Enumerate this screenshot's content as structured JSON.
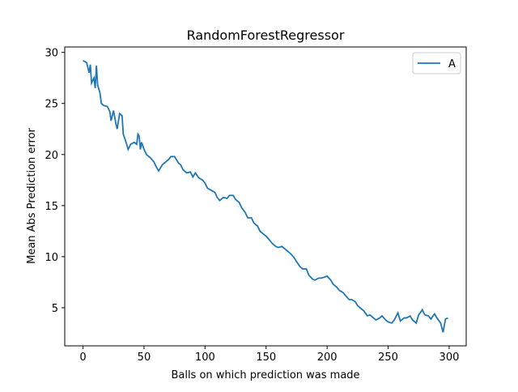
{
  "chart_data": {
    "type": "line",
    "title": "RandomForestRegressor",
    "x_label": "Balls on which prediction was made",
    "y_label": "Mean Abs Prediction error",
    "x": [
      0,
      3,
      5,
      6,
      7,
      9,
      10,
      11,
      12,
      14,
      15,
      17,
      20,
      22,
      23,
      25,
      27,
      28,
      30,
      32,
      33,
      35,
      37,
      39,
      42,
      44,
      45,
      46,
      47,
      48,
      50,
      52,
      55,
      58,
      60,
      62,
      65,
      68,
      70,
      72,
      75,
      78,
      80,
      82,
      85,
      88,
      90,
      92,
      95,
      98,
      100,
      102,
      105,
      108,
      110,
      112,
      115,
      118,
      120,
      123,
      125,
      128,
      130,
      133,
      135,
      138,
      140,
      143,
      145,
      148,
      150,
      153,
      155,
      158,
      160,
      163,
      165,
      168,
      170,
      173,
      175,
      178,
      180,
      183,
      185,
      188,
      190,
      193,
      195,
      198,
      200,
      203,
      205,
      208,
      210,
      213,
      215,
      218,
      220,
      223,
      225,
      228,
      230,
      233,
      235,
      238,
      240,
      243,
      245,
      248,
      250,
      253,
      255,
      258,
      260,
      263,
      265,
      268,
      270,
      273,
      275,
      278,
      280,
      283,
      285,
      288,
      290,
      293,
      295,
      297,
      299
    ],
    "series": [
      {
        "name": "A",
        "color": "#1f77b4",
        "values": [
          29.2,
          29.0,
          28.0,
          28.8,
          27.0,
          27.5,
          26.5,
          28.7,
          26.8,
          26.0,
          25.0,
          24.8,
          24.7,
          24.2,
          23.3,
          24.3,
          23.0,
          22.5,
          24.0,
          23.8,
          22.0,
          21.3,
          20.5,
          21.0,
          21.2,
          21.0,
          22.0,
          21.8,
          20.5,
          21.2,
          20.5,
          20.0,
          19.7,
          19.3,
          18.8,
          18.4,
          19.0,
          19.3,
          19.5,
          19.8,
          19.8,
          19.2,
          19.0,
          18.5,
          18.2,
          18.3,
          17.8,
          18.2,
          17.7,
          17.5,
          17.2,
          16.7,
          16.5,
          16.3,
          15.8,
          15.5,
          15.8,
          15.7,
          16.0,
          16.0,
          15.6,
          15.3,
          14.8,
          14.3,
          13.8,
          13.8,
          13.3,
          13.0,
          12.5,
          12.2,
          12.0,
          11.6,
          11.3,
          11.0,
          10.9,
          11.0,
          10.8,
          10.5,
          10.3,
          9.9,
          9.5,
          9.0,
          8.8,
          8.8,
          8.2,
          7.8,
          7.7,
          7.9,
          7.9,
          8.0,
          8.1,
          7.7,
          7.3,
          7.0,
          6.7,
          6.5,
          6.2,
          5.8,
          5.8,
          5.6,
          5.2,
          4.9,
          4.7,
          4.2,
          4.3,
          4.0,
          3.8,
          4.0,
          4.2,
          3.8,
          3.6,
          3.5,
          3.8,
          4.5,
          3.7,
          4.0,
          4.0,
          4.2,
          3.8,
          3.5,
          4.3,
          4.8,
          4.3,
          4.2,
          3.9,
          4.4,
          4.0,
          3.5,
          2.6,
          3.9,
          4.0
        ]
      }
    ],
    "xlim": [
      -14.95,
      313.95
    ],
    "ylim": [
      1.27,
      30.53
    ],
    "xticks": [
      0,
      50,
      100,
      150,
      200,
      250,
      300
    ],
    "yticks": [
      5,
      10,
      15,
      20,
      25,
      30
    ],
    "legend": "upper right"
  }
}
